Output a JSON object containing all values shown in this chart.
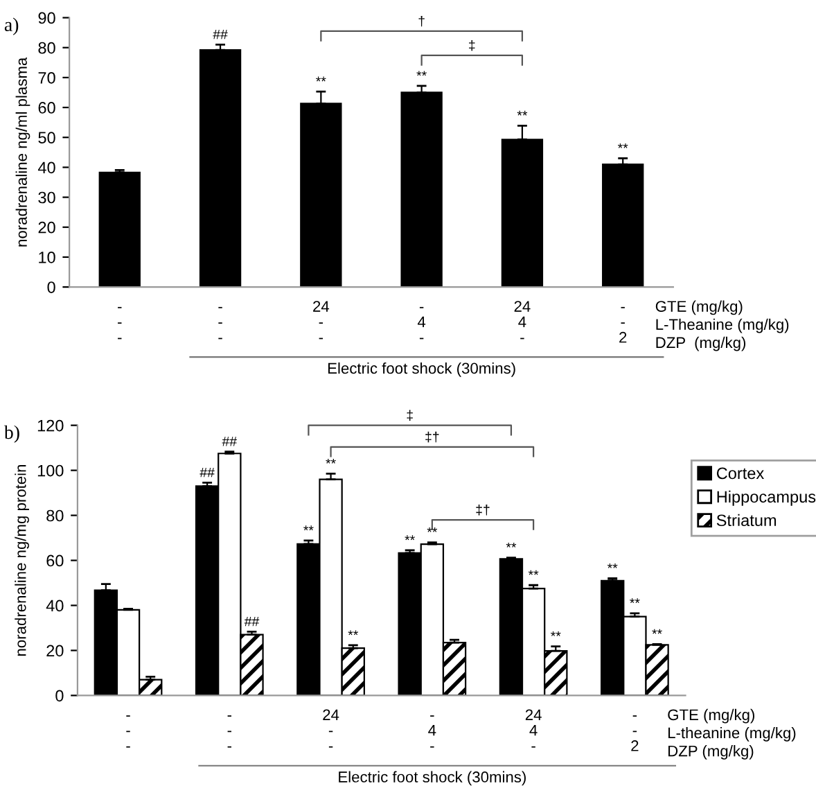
{
  "chart_data": [
    {
      "type": "bar",
      "ylabel": "noradrenaline ng/ml plasma",
      "categories": [
        "-\n-\n-",
        "-\n-\n-",
        "24\n-\n-",
        "-\n4\n-",
        "24\n4\n-",
        "-\n-\n2"
      ],
      "series": [
        {
          "color": "#000000",
          "values": [
            38.3,
            79.2,
            61.3,
            65,
            49.3,
            41
          ],
          "errors": [
            0.8,
            1.8,
            4,
            2.2,
            4.6,
            2
          ],
          "value_labels": [
            null,
            "##",
            "**",
            "**",
            "**",
            "**"
          ]
        }
      ],
      "ylim": [
        0,
        90
      ],
      "yticks": [
        0,
        10,
        20,
        30,
        40,
        50,
        60,
        70,
        80,
        90
      ],
      "annotations": [
        "a)",
        "GTE (mg/kg)",
        "L-Theanine (mg/kg)",
        "DZP  (mg/kg)",
        "Electric foot shock (30mins)",
        "†",
        "‡"
      ]
    },
    {
      "type": "bar",
      "ylabel": "noradrenaline ng/mg protein",
      "categories": [
        "-\n-\n-",
        "-\n-\n-",
        "24\n-\n-",
        "-\n4\n-",
        "24\n4\n-",
        "-\n-\n2"
      ],
      "series": [
        {
          "name": "Cortex",
          "color": "#000000",
          "values": [
            46.7,
            93,
            67.3,
            63.3,
            60.7,
            51
          ],
          "errors": [
            2.8,
            1.5,
            1.5,
            1.2,
            0.5,
            1
          ],
          "value_labels": [
            null,
            "##",
            "**",
            "**",
            "**",
            "**"
          ]
        },
        {
          "name": "Hippocampus",
          "color": "#ffffff",
          "values": [
            38,
            107.5,
            96,
            67.2,
            47.5,
            35
          ],
          "errors": [
            0.5,
            0.8,
            2.5,
            0.8,
            1.5,
            1.5
          ],
          "value_labels": [
            null,
            "##",
            "**",
            "**",
            "**",
            "**"
          ]
        },
        {
          "name": "Striatum",
          "color": "#000000",
          "values": [
            7,
            27,
            21,
            23.5,
            19.8,
            22.5
          ],
          "errors": [
            1.3,
            1.3,
            1.3,
            1.2,
            2,
            0.3
          ],
          "value_labels": [
            null,
            "##",
            "**",
            null,
            "**",
            "**"
          ]
        }
      ],
      "ylim": [
        0,
        120
      ],
      "yticks": [
        0,
        20,
        40,
        60,
        80,
        100,
        120
      ],
      "legend": "right",
      "annotations": [
        "b)",
        "GTE (mg/kg)",
        "L-theanine (mg/kg)",
        "DZP (mg/kg)",
        "Electric foot shock (30mins)",
        "‡",
        "‡†",
        "‡†"
      ]
    }
  ]
}
